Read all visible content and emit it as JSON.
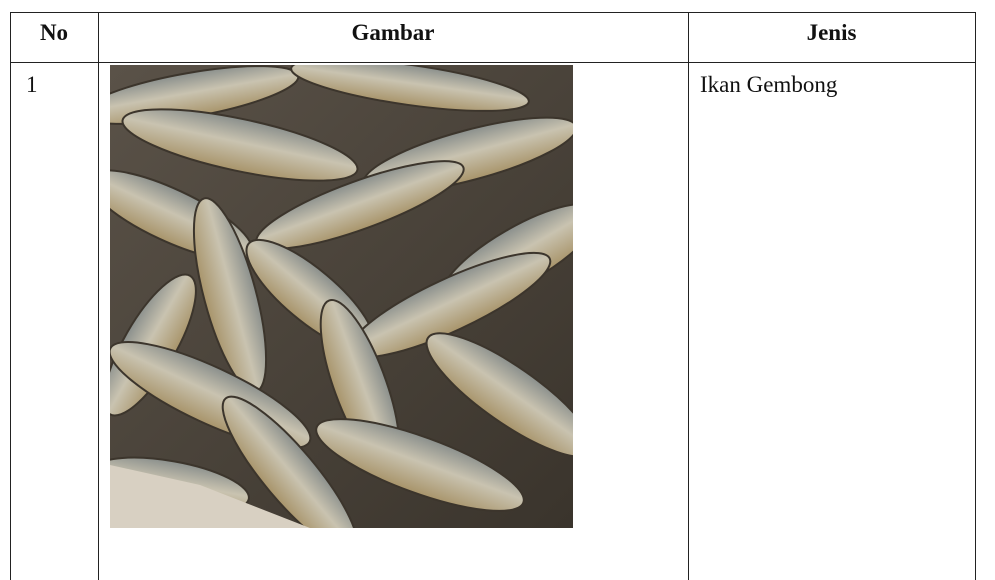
{
  "table": {
    "header": [
      "No",
      "Gambar",
      "Jenis"
    ],
    "rows": [
      [
        "1",
        "Ikan Gembong"
      ]
    ]
  }
}
